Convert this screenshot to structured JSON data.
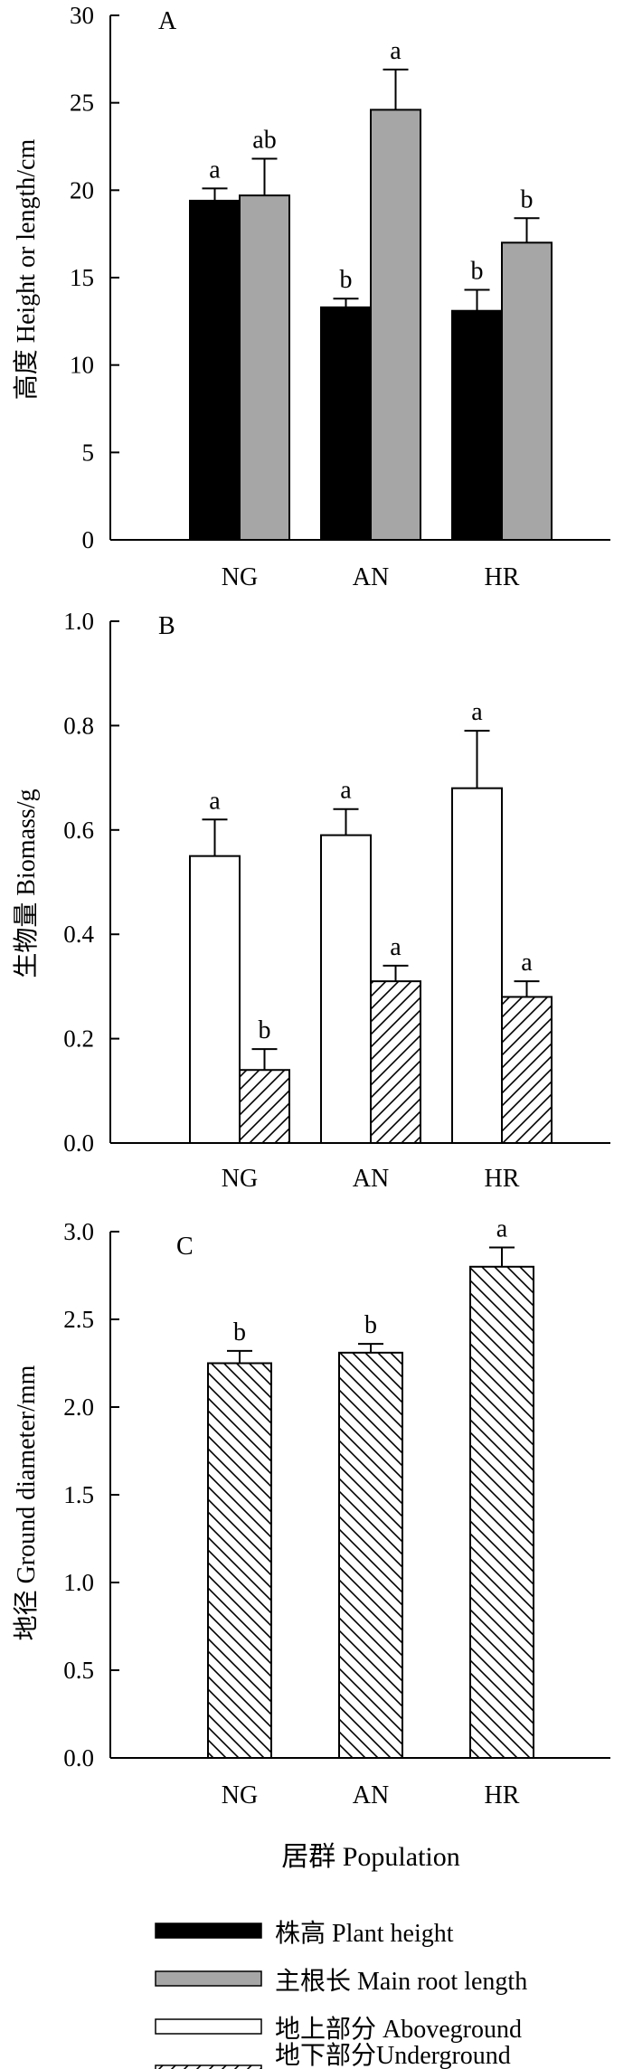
{
  "chart_data": [
    {
      "panel_label": "A",
      "type": "bar",
      "categories": [
        "NG",
        "AN",
        "HR"
      ],
      "ylabel": "高度 Height or length/cm",
      "ylim": [
        0,
        30
      ],
      "yticks": [
        0,
        5,
        10,
        15,
        20,
        25,
        30
      ],
      "series": [
        {
          "name": "株高 Plant height",
          "style": "solid-black",
          "values": [
            19.4,
            13.3,
            13.1
          ],
          "errors": [
            0.7,
            0.5,
            1.2
          ],
          "letters": [
            "a",
            "b",
            "b"
          ]
        },
        {
          "name": "主根长 Main root length",
          "style": "solid-gray",
          "values": [
            19.7,
            24.6,
            17.0
          ],
          "errors": [
            2.1,
            2.3,
            1.4
          ],
          "letters": [
            "ab",
            "a",
            "b"
          ]
        }
      ]
    },
    {
      "panel_label": "B",
      "type": "bar",
      "categories": [
        "NG",
        "AN",
        "HR"
      ],
      "ylabel": "生物量 Biomass/g",
      "ylim": [
        0,
        1.0
      ],
      "yticks": [
        "0.0",
        "0.2",
        "0.4",
        "0.6",
        "0.8",
        "1.0"
      ],
      "series": [
        {
          "name": "地上部分 Aboveground",
          "style": "open-white",
          "values": [
            0.55,
            0.59,
            0.68
          ],
          "errors": [
            0.07,
            0.05,
            0.11
          ],
          "letters": [
            "a",
            "a",
            "a"
          ]
        },
        {
          "name": "地下部分Underground",
          "style": "hatch-forward",
          "values": [
            0.14,
            0.31,
            0.28
          ],
          "errors": [
            0.04,
            0.03,
            0.03
          ],
          "letters": [
            "b",
            "a",
            "a"
          ]
        }
      ]
    },
    {
      "panel_label": "C",
      "type": "bar",
      "categories": [
        "NG",
        "AN",
        "HR"
      ],
      "ylabel": "地径 Ground diameter/mm",
      "xlabel": "居群 Population",
      "ylim": [
        0,
        3.0
      ],
      "yticks": [
        "0.0",
        "0.5",
        "1.0",
        "1.5",
        "2.0",
        "2.5",
        "3.0"
      ],
      "series": [
        {
          "style": "hatch-back",
          "values": [
            2.25,
            2.31,
            2.8
          ],
          "errors": [
            0.07,
            0.05,
            0.11
          ],
          "letters": [
            "b",
            "b",
            "a"
          ]
        }
      ]
    }
  ],
  "legend": {
    "placement": "bottom",
    "items": [
      {
        "label": "株高  Plant height",
        "style": "solid-black"
      },
      {
        "label": "主根长  Main root length",
        "style": "solid-gray"
      },
      {
        "label": "地上部分  Aboveground",
        "style": "open-white"
      },
      {
        "label": "地下部分Underground",
        "style": "hatch-forward"
      }
    ]
  },
  "colors": {
    "black": "#000000",
    "gray": "#a6a6a6",
    "white": "#ffffff"
  }
}
